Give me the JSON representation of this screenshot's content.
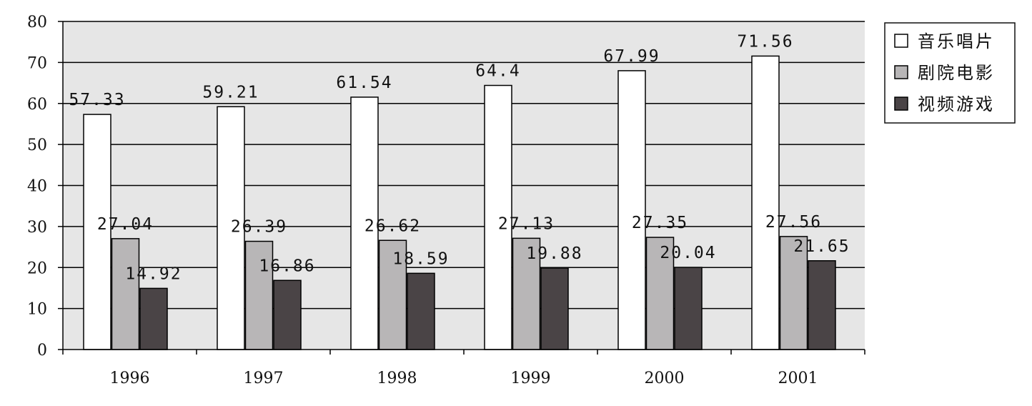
{
  "chart_data": {
    "type": "bar",
    "title": "",
    "xlabel": "",
    "ylabel": "",
    "categories": [
      "1996",
      "1997",
      "1998",
      "1999",
      "2000",
      "2001"
    ],
    "ylim": [
      0,
      80
    ],
    "yticks": [
      "0",
      "10",
      "20",
      "30",
      "40",
      "50",
      "60",
      "70",
      "80"
    ],
    "grid": true,
    "legend_position": "right",
    "plot_background": "#e6e6e6",
    "series": [
      {
        "name": "音乐唱片",
        "color": "#ffffff",
        "values": [
          57.33,
          59.21,
          61.54,
          64.4,
          67.99,
          71.56
        ],
        "labels": [
          "57.33",
          "59.21",
          "61.54",
          "64.4",
          "67.99",
          "71.56"
        ]
      },
      {
        "name": "剧院电影",
        "color": "#b8b6b7",
        "values": [
          27.04,
          26.39,
          26.62,
          27.13,
          27.35,
          27.56
        ],
        "labels": [
          "27.04",
          "26.39",
          "26.62",
          "27.13",
          "27.35",
          "27.56"
        ]
      },
      {
        "name": "视频游戏",
        "color": "#4a4446",
        "values": [
          14.92,
          16.86,
          18.59,
          19.88,
          20.04,
          21.65
        ],
        "labels": [
          "14.92",
          "16.86",
          "18.59",
          "19.88",
          "20.04",
          "21.65"
        ]
      }
    ]
  }
}
